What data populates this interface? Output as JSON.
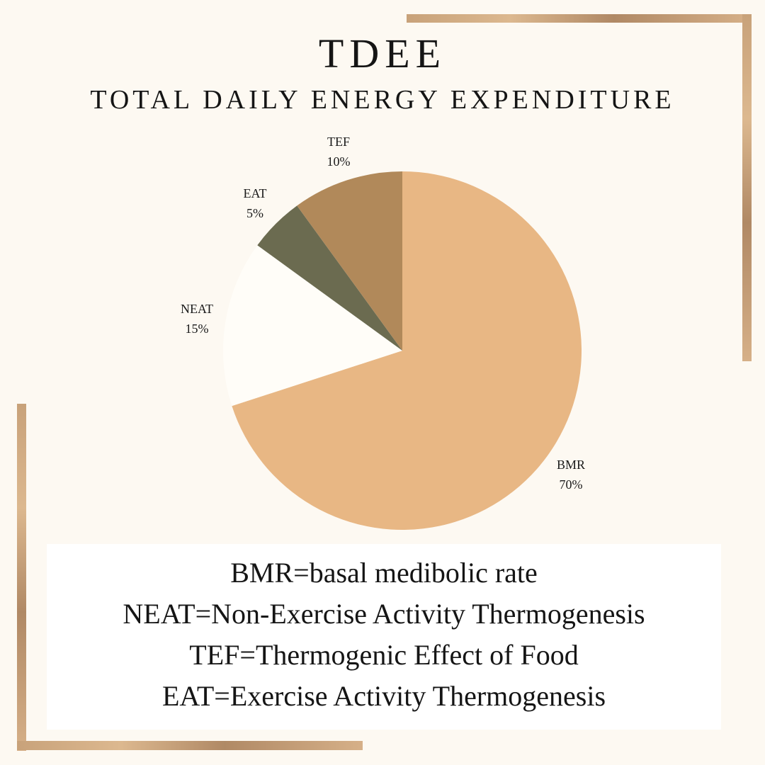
{
  "title": "TDEE",
  "subtitle": "TOTAL DAILY ENERGY EXPENDITURE",
  "chart_data": {
    "type": "pie",
    "slices": [
      {
        "label": "BMR",
        "value": 70,
        "value_label": "70%",
        "color": "#e8b784"
      },
      {
        "label": "NEAT",
        "value": 15,
        "value_label": "15%",
        "color": "#fffdf8"
      },
      {
        "label": "EAT",
        "value": 5,
        "value_label": "5%",
        "color": "#6b6b50"
      },
      {
        "label": "TEF",
        "value": 10,
        "value_label": "10%",
        "color": "#b1895a"
      }
    ]
  },
  "legend": {
    "lines": [
      "BMR=basal medibolic rate",
      "NEAT=Non-Exercise Activity Thermogenesis",
      "TEF=Thermogenic Effect of Food",
      "EAT=Exercise Activity Thermogenesis"
    ]
  },
  "colors": {
    "background": "#fdf9f2",
    "frame": "#c8a27a"
  }
}
